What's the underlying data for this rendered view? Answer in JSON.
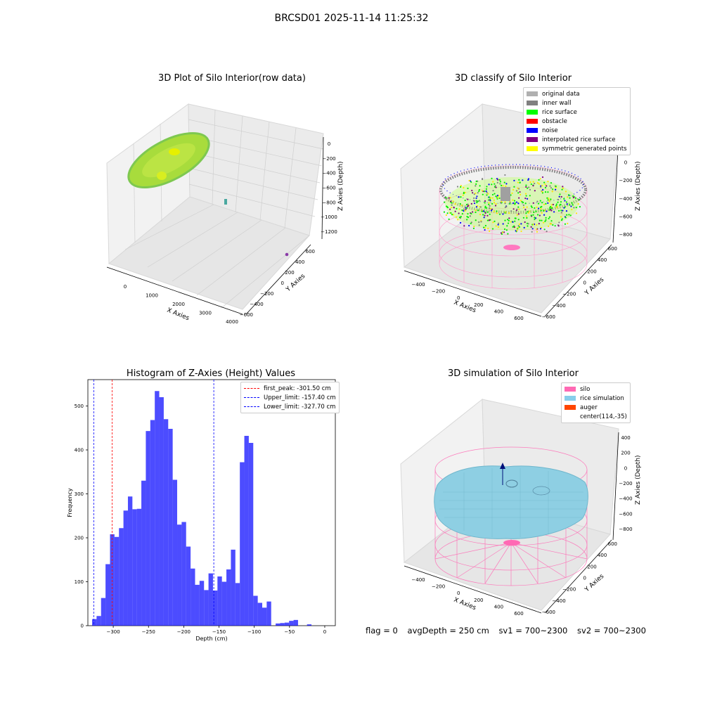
{
  "suptitle": "BRCSD01 2025-11-14 11:25:32",
  "panels": {
    "raw": {
      "title": "3D Plot of Silo Interior(row data)",
      "xlabel": "X Axies",
      "ylabel": "Y Axies",
      "zlabel": "Z Axies (Depth)",
      "xticks": [
        "0",
        "1000",
        "2000",
        "3000",
        "4000"
      ],
      "yticks": [
        "600",
        "400",
        "200",
        "0",
        "−200",
        "−400",
        "−600"
      ],
      "zticks": [
        "0",
        "−200",
        "−400",
        "−600",
        "−800",
        "−1000",
        "−1200"
      ]
    },
    "classify": {
      "title": "3D classify of Silo Interior",
      "xlabel": "X Axies",
      "ylabel": "Y Axies",
      "zlabel": "Z Axies (Depth)",
      "xticks": [
        "−400",
        "−200",
        "0",
        "200",
        "400",
        "600"
      ],
      "yticks": [
        "600",
        "400",
        "200",
        "0",
        "−200",
        "−400",
        "−600"
      ],
      "zticks": [
        "200",
        "0",
        "−200",
        "−400",
        "−600",
        "−800"
      ],
      "legend": [
        {
          "label": "original data",
          "color": "#b0b0b0"
        },
        {
          "label": "inner wall",
          "color": "#808080"
        },
        {
          "label": "rice surface",
          "color": "#00ff00"
        },
        {
          "label": "obstacle",
          "color": "#ff0000"
        },
        {
          "label": "noise",
          "color": "#0000ff"
        },
        {
          "label": "interpolated rice surface",
          "color": "#800080"
        },
        {
          "label": "symmetric generated points",
          "color": "#ffff00"
        }
      ]
    },
    "simulation": {
      "title": "3D simulation of Silo Interior",
      "xlabel": "X Axies",
      "ylabel": "Y Axies",
      "zlabel": "Z Axies (Depth)",
      "xticks": [
        "−400",
        "−200",
        "0",
        "200",
        "400",
        "600"
      ],
      "yticks": [
        "600",
        "400",
        "200",
        "0",
        "−200",
        "−400",
        "−600"
      ],
      "zticks": [
        "400",
        "200",
        "0",
        "−200",
        "−400",
        "−600",
        "−800"
      ],
      "legend": [
        {
          "label": "silo",
          "color": "#ff69b4"
        },
        {
          "label": "rice simulation",
          "color": "#87ceeb"
        },
        {
          "label": "auger",
          "color": "#ff4500"
        },
        {
          "label": "center(114,-35)",
          "color": ""
        }
      ]
    }
  },
  "chart_data": {
    "type": "bar",
    "title": "Histogram of Z-Axies (Height) Values",
    "xlabel": "Depth (cm)",
    "ylabel": "Frequency",
    "bin_start": -330,
    "bin_width": 6.35,
    "values": [
      15,
      22,
      63,
      140,
      208,
      202,
      222,
      262,
      294,
      265,
      266,
      330,
      443,
      468,
      534,
      520,
      470,
      448,
      332,
      230,
      236,
      180,
      130,
      93,
      102,
      81,
      119,
      80,
      112,
      100,
      128,
      173,
      97,
      372,
      432,
      416,
      68,
      52,
      41,
      55,
      0,
      5,
      6,
      7,
      11,
      13,
      0,
      0,
      3
    ],
    "xlim": [
      -336,
      15
    ],
    "ylim": [
      0,
      560
    ],
    "xticks": [
      -300,
      -250,
      -200,
      -150,
      -100,
      -50,
      0
    ],
    "xtick_labels": [
      "−300",
      "−250",
      "−200",
      "−150",
      "−100",
      "−50",
      "0"
    ],
    "yticks": [
      0,
      100,
      200,
      300,
      400,
      500
    ],
    "bar_color": "#0000ff",
    "legend_placement": "upper right",
    "lines": [
      {
        "value": -301.5,
        "label": "first_peak: -301.50 cm",
        "color": "#ff0000"
      },
      {
        "value": -157.4,
        "label": "Upper_limit: -157.40 cm",
        "color": "#0000ff"
      },
      {
        "value": -327.7,
        "label": "Lower_limit: -327.70 cm",
        "color": "#0000ff"
      }
    ]
  },
  "footer": {
    "flag": "flag = 0",
    "avg_depth": "avgDepth = 250 cm",
    "sv1": "sv1 = 700~2300",
    "sv2": "sv2 = 700~2300"
  }
}
